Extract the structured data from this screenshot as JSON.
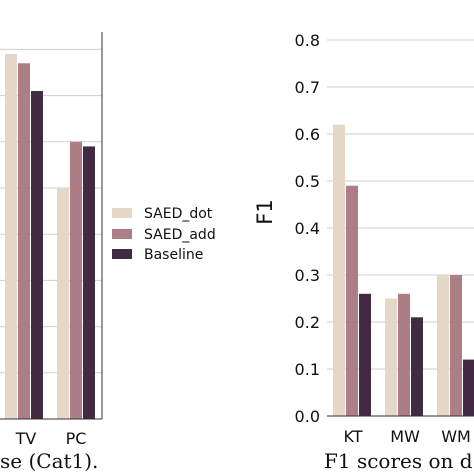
{
  "chart_data": [
    {
      "type": "bar",
      "categories": [
        "TV",
        "PC"
      ],
      "series": [
        {
          "name": "SAED_dot",
          "values": [
            0.79,
            0.5
          ]
        },
        {
          "name": "SAED_add",
          "values": [
            0.77,
            0.6
          ]
        },
        {
          "name": "Baseline",
          "values": [
            0.71,
            0.59
          ]
        }
      ],
      "caption_fragment": "se (Cat1).",
      "ylim": [
        0,
        0.85
      ],
      "grid": true
    },
    {
      "type": "bar",
      "categories": [
        "KT",
        "MW",
        "WM"
      ],
      "series": [
        {
          "name": "SAED_dot",
          "values": [
            0.62,
            0.25,
            0.3
          ]
        },
        {
          "name": "SAED_add",
          "values": [
            0.49,
            0.26,
            0.3
          ]
        },
        {
          "name": "Baseline",
          "values": [
            0.26,
            0.21,
            0.12
          ]
        }
      ],
      "ylabel": "F1",
      "yticks": [
        "0.0",
        "0.1",
        "0.2",
        "0.3",
        "0.4",
        "0.5",
        "0.6",
        "0.7",
        "0.8"
      ],
      "caption_fragment": "F1 scores on d",
      "ylim": [
        0,
        0.82
      ],
      "grid": true
    }
  ],
  "legend": {
    "placement": "center-left",
    "entries": [
      "SAED_dot",
      "SAED_add",
      "Baseline"
    ]
  },
  "colors": {
    "SAED_dot": "#e6d8c8",
    "SAED_add": "#ad7e85",
    "Baseline": "#432a43",
    "grid": "#cfcfcf",
    "axis": "#333333"
  }
}
